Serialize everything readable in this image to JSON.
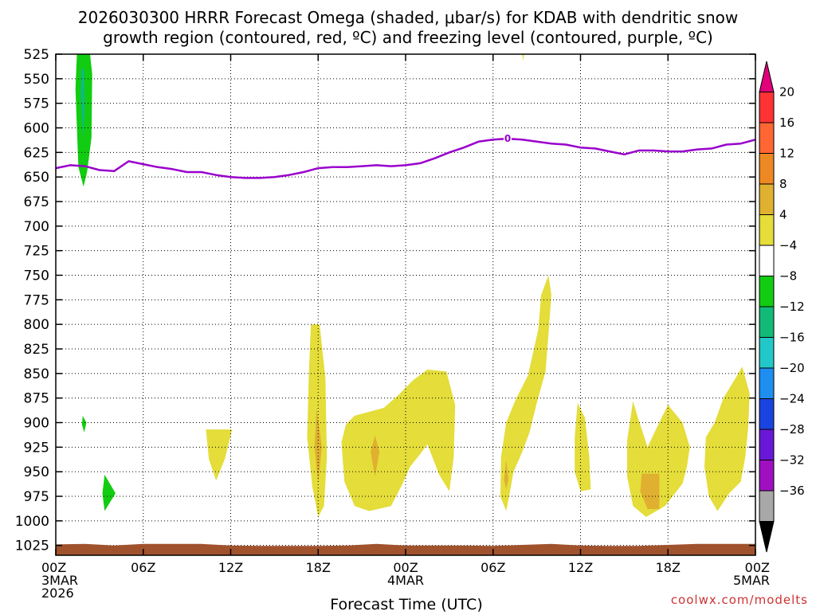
{
  "header": {
    "title_line1": "2026030300 HRRR Forecast Omega (shaded, μbar/s) for KDAB with dendritic snow",
    "title_line2": "growth region (contoured, red, ºC) and freezing level (contoured, purple, ºC)"
  },
  "footer": {
    "xlabel": "Forecast Time (UTC)",
    "credit": "coolwx.com/modelts"
  },
  "chart_data": {
    "type": "heatmap",
    "y_axis": {
      "label": "",
      "ticks": [
        525,
        550,
        575,
        600,
        625,
        650,
        675,
        700,
        725,
        750,
        775,
        800,
        825,
        850,
        875,
        900,
        925,
        950,
        975,
        1000,
        1025
      ],
      "range": [
        525,
        1035
      ],
      "inverted": true,
      "unit": "hPa"
    },
    "x_axis": {
      "range_hours": [
        0,
        48
      ],
      "ticks": [
        {
          "hour": 0,
          "labels": [
            "00Z",
            "3MAR",
            "2026"
          ]
        },
        {
          "hour": 6,
          "labels": [
            "06Z"
          ]
        },
        {
          "hour": 12,
          "labels": [
            "12Z"
          ]
        },
        {
          "hour": 18,
          "labels": [
            "18Z"
          ]
        },
        {
          "hour": 24,
          "labels": [
            "00Z",
            "4MAR"
          ]
        },
        {
          "hour": 30,
          "labels": [
            "06Z"
          ]
        },
        {
          "hour": 36,
          "labels": [
            "12Z"
          ]
        },
        {
          "hour": 42,
          "labels": [
            "18Z"
          ]
        },
        {
          "hour": 48,
          "labels": [
            "00Z",
            "5MAR"
          ]
        }
      ]
    },
    "grid": true,
    "colorbar": {
      "placement": "right",
      "labels": [
        "20",
        "16",
        "12",
        "8",
        "4",
        "−4",
        "−8",
        "−12",
        "−16",
        "−20",
        "−24",
        "−28",
        "−32",
        "−36"
      ],
      "colors": [
        "#e0007a",
        "#ff3333",
        "#ff6633",
        "#ee8822",
        "#e0b030",
        "#e4dd3a",
        "#ffffff",
        "#11cc11",
        "#11bb77",
        "#22c8c8",
        "#1e8ef0",
        "#1a44e0",
        "#6a18d8",
        "#a010c0",
        "#a8a8a8",
        "#000000"
      ]
    },
    "freezing_level": {
      "color": "#9900cc",
      "label": "0",
      "label_point": {
        "hour": 31,
        "p": 611
      },
      "points": [
        [
          0,
          641
        ],
        [
          1,
          638
        ],
        [
          2,
          639
        ],
        [
          3,
          643
        ],
        [
          4,
          644
        ],
        [
          5,
          634
        ],
        [
          6,
          637
        ],
        [
          7,
          640
        ],
        [
          8,
          642
        ],
        [
          9,
          645
        ],
        [
          10,
          645
        ],
        [
          11,
          648
        ],
        [
          12,
          650
        ],
        [
          13,
          651
        ],
        [
          14,
          651
        ],
        [
          15,
          650
        ],
        [
          16,
          648
        ],
        [
          17,
          645
        ],
        [
          18,
          641
        ],
        [
          19,
          640
        ],
        [
          20,
          640
        ],
        [
          21,
          639
        ],
        [
          22,
          638
        ],
        [
          23,
          639
        ],
        [
          24,
          638
        ],
        [
          25,
          636
        ],
        [
          26,
          631
        ],
        [
          27,
          625
        ],
        [
          28,
          620
        ],
        [
          29,
          614
        ],
        [
          30,
          612
        ],
        [
          31,
          611
        ],
        [
          32,
          612
        ],
        [
          33,
          614
        ],
        [
          34,
          616
        ],
        [
          35,
          617
        ],
        [
          36,
          620
        ],
        [
          37,
          621
        ],
        [
          38,
          624
        ],
        [
          39,
          627
        ],
        [
          40,
          623
        ],
        [
          41,
          623
        ],
        [
          42,
          624
        ],
        [
          43,
          624
        ],
        [
          44,
          622
        ],
        [
          45,
          621
        ],
        [
          46,
          617
        ],
        [
          47,
          616
        ],
        [
          48,
          612
        ]
      ]
    },
    "omega_regions": [
      {
        "value": -6,
        "color": "#11cc11",
        "points": [
          [
            1.45,
            525
          ],
          [
            2.35,
            525
          ],
          [
            2.5,
            545
          ],
          [
            2.45,
            610
          ],
          [
            2.15,
            645
          ],
          [
            1.9,
            660
          ],
          [
            1.55,
            640
          ],
          [
            1.45,
            600
          ],
          [
            1.35,
            560
          ]
        ]
      },
      {
        "value": -10,
        "color": "#11bb77",
        "points": [
          [
            1.75,
            540
          ],
          [
            1.95,
            540
          ],
          [
            2.0,
            580
          ],
          [
            1.9,
            610
          ],
          [
            1.8,
            595
          ],
          [
            1.7,
            565
          ]
        ]
      },
      {
        "value": -6,
        "color": "#11cc11",
        "points": [
          [
            1.85,
            893
          ],
          [
            2.1,
            900
          ],
          [
            1.95,
            910
          ],
          [
            1.8,
            902
          ]
        ]
      },
      {
        "value": -6,
        "color": "#11cc11",
        "points": [
          [
            3.35,
            953
          ],
          [
            4.1,
            972
          ],
          [
            3.35,
            990
          ],
          [
            3.2,
            972
          ]
        ]
      },
      {
        "value": 6,
        "color": "#e4dd3a",
        "points": [
          [
            10.3,
            907
          ],
          [
            12.1,
            907
          ],
          [
            11.6,
            937
          ],
          [
            11.0,
            959
          ],
          [
            10.5,
            937
          ]
        ]
      },
      {
        "value": 6,
        "color": "#e4dd3a",
        "points": [
          [
            17.5,
            800
          ],
          [
            18.1,
            800
          ],
          [
            18.5,
            855
          ],
          [
            18.6,
            935
          ],
          [
            18.4,
            985
          ],
          [
            18.0,
            996
          ],
          [
            17.6,
            965
          ],
          [
            17.25,
            915
          ],
          [
            17.35,
            855
          ]
        ]
      },
      {
        "value": 10,
        "color": "#e0b030",
        "points": [
          [
            17.9,
            885
          ],
          [
            18.25,
            925
          ],
          [
            18.0,
            962
          ],
          [
            17.75,
            925
          ]
        ]
      },
      {
        "value": 6,
        "color": "#e4dd3a",
        "points": [
          [
            20.5,
            893
          ],
          [
            22.5,
            885
          ],
          [
            23.5,
            872
          ],
          [
            24.5,
            857
          ],
          [
            25.5,
            846
          ],
          [
            26.8,
            848
          ],
          [
            27.4,
            882
          ],
          [
            27.3,
            935
          ],
          [
            27.0,
            970
          ],
          [
            26.3,
            953
          ],
          [
            25.5,
            922
          ],
          [
            25.0,
            932
          ],
          [
            24.3,
            945
          ],
          [
            23.8,
            962
          ],
          [
            23.0,
            985
          ],
          [
            21.5,
            990
          ],
          [
            20.5,
            985
          ],
          [
            19.8,
            960
          ],
          [
            19.6,
            920
          ],
          [
            19.9,
            902
          ]
        ]
      },
      {
        "value": 10,
        "color": "#e0b030",
        "points": [
          [
            21.9,
            913
          ],
          [
            22.2,
            930
          ],
          [
            21.9,
            955
          ],
          [
            21.6,
            930
          ]
        ]
      },
      {
        "value": 6,
        "color": "#e4dd3a",
        "points": [
          [
            33.8,
            750
          ],
          [
            34.0,
            770
          ],
          [
            33.8,
            810
          ],
          [
            33.6,
            848
          ],
          [
            33.0,
            880
          ],
          [
            32.5,
            910
          ],
          [
            32.0,
            930
          ],
          [
            31.4,
            950
          ],
          [
            31.1,
            975
          ],
          [
            30.9,
            990
          ],
          [
            30.5,
            975
          ],
          [
            30.55,
            935
          ],
          [
            30.9,
            900
          ],
          [
            31.6,
            875
          ],
          [
            32.4,
            852
          ],
          [
            33.1,
            805
          ],
          [
            33.3,
            770
          ]
        ]
      },
      {
        "value": 10,
        "color": "#e0b030",
        "points": [
          [
            30.9,
            938
          ],
          [
            31.05,
            958
          ],
          [
            30.9,
            968
          ],
          [
            30.75,
            958
          ]
        ]
      },
      {
        "value": 6,
        "color": "#e4dd3a",
        "points": [
          [
            35.8,
            880
          ],
          [
            36.3,
            895
          ],
          [
            36.6,
            935
          ],
          [
            36.7,
            968
          ],
          [
            36.0,
            970
          ],
          [
            35.6,
            950
          ],
          [
            35.6,
            915
          ]
        ]
      },
      {
        "value": 6,
        "color": "#e4dd3a",
        "points": [
          [
            39.6,
            878
          ],
          [
            39.9,
            893
          ],
          [
            40.6,
            925
          ],
          [
            41.4,
            900
          ],
          [
            42.0,
            882
          ],
          [
            43.0,
            900
          ],
          [
            43.5,
            925
          ],
          [
            43.3,
            945
          ],
          [
            43.0,
            962
          ],
          [
            41.8,
            985
          ],
          [
            40.5,
            996
          ],
          [
            39.6,
            985
          ],
          [
            39.2,
            955
          ],
          [
            39.2,
            918
          ]
        ]
      },
      {
        "value": 10,
        "color": "#e0b030",
        "points": [
          [
            40.2,
            952
          ],
          [
            41.4,
            952
          ],
          [
            41.4,
            988
          ],
          [
            40.6,
            988
          ],
          [
            40.1,
            970
          ]
        ]
      },
      {
        "value": 6,
        "color": "#e4dd3a",
        "points": [
          [
            47.1,
            843
          ],
          [
            47.6,
            870
          ],
          [
            47.5,
            905
          ],
          [
            47.3,
            935
          ],
          [
            47.0,
            960
          ],
          [
            46.2,
            972
          ],
          [
            45.4,
            990
          ],
          [
            44.8,
            975
          ],
          [
            44.5,
            945
          ],
          [
            44.6,
            915
          ],
          [
            45.2,
            900
          ],
          [
            45.8,
            875
          ],
          [
            46.5,
            858
          ]
        ]
      },
      {
        "value": 6,
        "color": "#e4dd3a",
        "points": [
          [
            32.0,
            525
          ],
          [
            32.12,
            525
          ],
          [
            32.08,
            532
          ]
        ]
      }
    ],
    "terrain": {
      "color": "#a0522d",
      "top_points": [
        [
          0,
          1024
        ],
        [
          2,
          1023.5
        ],
        [
          4,
          1025
        ],
        [
          6,
          1023.5
        ],
        [
          8,
          1023.5
        ],
        [
          10,
          1023.5
        ],
        [
          12,
          1025
        ],
        [
          14,
          1025.5
        ],
        [
          16,
          1025.5
        ],
        [
          18,
          1025.5
        ],
        [
          20,
          1025
        ],
        [
          22,
          1023.5
        ],
        [
          24,
          1025
        ],
        [
          26,
          1025
        ],
        [
          28,
          1025
        ],
        [
          30,
          1025.5
        ],
        [
          32,
          1024.5
        ],
        [
          34,
          1023.5
        ],
        [
          36,
          1025
        ],
        [
          38,
          1025.5
        ],
        [
          40,
          1025.5
        ],
        [
          42,
          1024.5
        ],
        [
          44,
          1023.5
        ],
        [
          46,
          1023.5
        ],
        [
          48,
          1023.5
        ]
      ]
    }
  }
}
